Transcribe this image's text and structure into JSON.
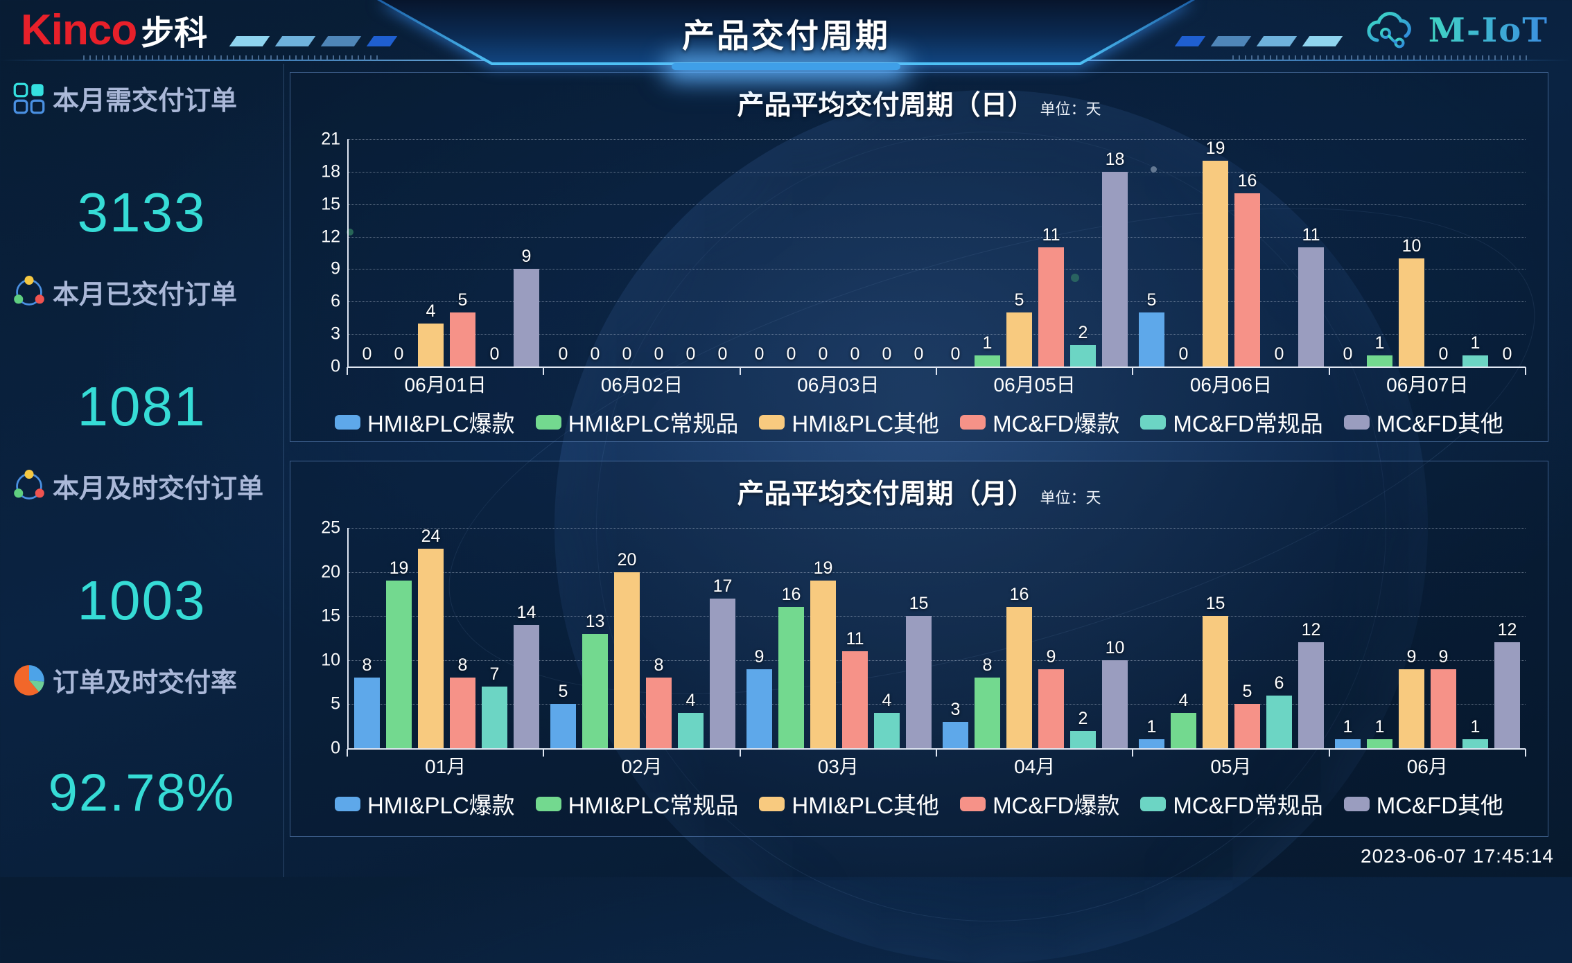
{
  "header": {
    "brand": {
      "kinco": "Kinco",
      "buke": "步科"
    },
    "title": "产品交付周期",
    "logo_right": "M-IoT"
  },
  "sidebar": {
    "value_color": "#36dcd6",
    "kpis": [
      {
        "icon": "grid-icon",
        "label": "本月需交付订单",
        "value": "3133"
      },
      {
        "icon": "share-icon",
        "label": "本月已交付订单",
        "value": "1081"
      },
      {
        "icon": "share-icon",
        "label": "本月及时交付订单",
        "value": "1003"
      },
      {
        "icon": "pie-icon",
        "label": "订单及时交付率",
        "value": "92.78%"
      }
    ]
  },
  "footer": {
    "timestamp": "2023-06-07 17:45:14"
  },
  "chart_data": [
    {
      "type": "bar",
      "title": "产品平均交付周期（日）",
      "unit_label": "单位：天",
      "categories": [
        "06月01日",
        "06月02日",
        "06月03日",
        "06月05日",
        "06月06日",
        "06月07日"
      ],
      "series": [
        {
          "name": "HMI&PLC爆款",
          "color": "#5ea8ea",
          "values": [
            0,
            0,
            0,
            0,
            5,
            0
          ]
        },
        {
          "name": "HMI&PLC常规品",
          "color": "#73d98f",
          "values": [
            0,
            0,
            0,
            1,
            0,
            1
          ]
        },
        {
          "name": "HMI&PLC其他",
          "color": "#f8ca7f",
          "values": [
            4,
            0,
            0,
            5,
            19,
            10
          ]
        },
        {
          "name": "MC&FD爆款",
          "color": "#f69288",
          "values": [
            5,
            0,
            0,
            11,
            16,
            0
          ]
        },
        {
          "name": "MC&FD常规品",
          "color": "#6cd5c4",
          "values": [
            0,
            0,
            0,
            2,
            0,
            1
          ]
        },
        {
          "name": "MC&FD其他",
          "color": "#9a9dbf",
          "values": [
            9,
            0,
            0,
            18,
            11,
            0
          ]
        }
      ],
      "ylim": [
        0,
        21
      ],
      "yticks": [
        0,
        3,
        6,
        9,
        12,
        15,
        18,
        21
      ],
      "grid": "dotted horizontal",
      "legend_position": "bottom"
    },
    {
      "type": "bar",
      "title": "产品平均交付周期（月）",
      "unit_label": "单位：天",
      "categories": [
        "01月",
        "02月",
        "03月",
        "04月",
        "05月",
        "06月"
      ],
      "series": [
        {
          "name": "HMI&PLC爆款",
          "color": "#5ea8ea",
          "values": [
            8,
            5,
            9,
            3,
            1,
            1
          ]
        },
        {
          "name": "HMI&PLC常规品",
          "color": "#73d98f",
          "values": [
            19,
            13,
            16,
            8,
            4,
            1
          ]
        },
        {
          "name": "HMI&PLC其他",
          "color": "#f8ca7f",
          "values": [
            24,
            20,
            19,
            16,
            15,
            9
          ]
        },
        {
          "name": "MC&FD爆款",
          "color": "#f69288",
          "values": [
            8,
            8,
            11,
            9,
            5,
            9
          ]
        },
        {
          "name": "MC&FD常规品",
          "color": "#6cd5c4",
          "values": [
            7,
            4,
            4,
            2,
            6,
            1
          ]
        },
        {
          "name": "MC&FD其他",
          "color": "#9a9dbf",
          "values": [
            14,
            17,
            15,
            10,
            12,
            12
          ]
        }
      ],
      "ylim": [
        0,
        25
      ],
      "yticks": [
        0,
        5,
        10,
        15,
        20,
        25
      ],
      "grid": "dotted horizontal",
      "legend_position": "bottom"
    }
  ]
}
